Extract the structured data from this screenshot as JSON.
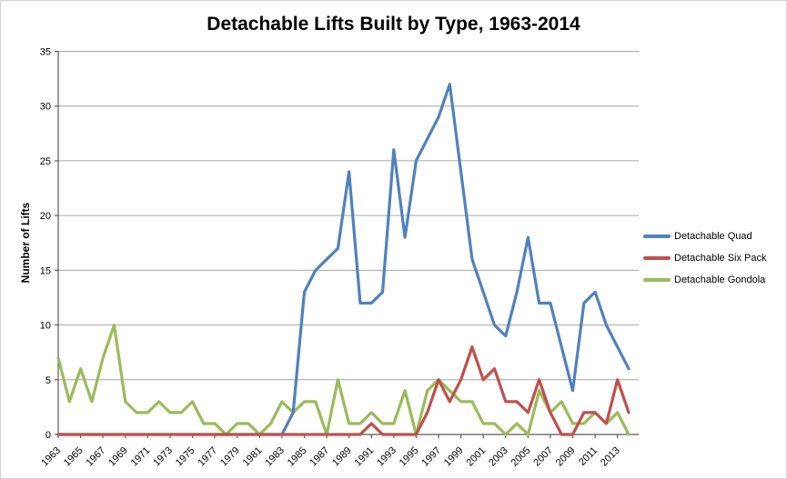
{
  "chart_data": {
    "type": "line",
    "title": "Detachable Lifts Built by Type, 1963-2014",
    "xlabel": "",
    "ylabel": "Number of Lifts",
    "ylim": [
      0,
      35
    ],
    "yticks": [
      0,
      5,
      10,
      15,
      20,
      25,
      30,
      35
    ],
    "x": [
      1963,
      1964,
      1965,
      1966,
      1967,
      1968,
      1969,
      1970,
      1971,
      1972,
      1973,
      1974,
      1975,
      1976,
      1977,
      1978,
      1979,
      1980,
      1981,
      1982,
      1983,
      1984,
      1985,
      1986,
      1987,
      1988,
      1989,
      1990,
      1991,
      1992,
      1993,
      1994,
      1995,
      1996,
      1997,
      1998,
      1999,
      2000,
      2001,
      2002,
      2003,
      2004,
      2005,
      2006,
      2007,
      2008,
      2009,
      2010,
      2011,
      2012,
      2013,
      2014
    ],
    "x_tick_labels": [
      "1963",
      "1965",
      "1967",
      "1969",
      "1971",
      "1973",
      "1975",
      "1977",
      "1979",
      "1981",
      "1983",
      "1985",
      "1987",
      "1989",
      "1991",
      "1993",
      "1995",
      "1997",
      "1999",
      "2001",
      "2003",
      "2005",
      "2007",
      "2009",
      "2011",
      "2013"
    ],
    "grid": "horizontal",
    "legend_position": "right",
    "series": [
      {
        "name": "Detachable Quad",
        "color": "#4F81BD",
        "values": [
          0,
          0,
          0,
          0,
          0,
          0,
          0,
          0,
          0,
          0,
          0,
          0,
          0,
          0,
          0,
          0,
          0,
          0,
          0,
          0,
          0,
          2,
          13,
          15,
          16,
          17,
          24,
          12,
          12,
          13,
          26,
          18,
          25,
          27,
          29,
          32,
          24,
          16,
          13,
          10,
          9,
          13,
          18,
          12,
          12,
          8,
          4,
          12,
          13,
          10,
          8,
          6
        ]
      },
      {
        "name": "Detachable Six Pack",
        "color": "#C0504D",
        "values": [
          0,
          0,
          0,
          0,
          0,
          0,
          0,
          0,
          0,
          0,
          0,
          0,
          0,
          0,
          0,
          0,
          0,
          0,
          0,
          0,
          0,
          0,
          0,
          0,
          0,
          0,
          0,
          0,
          1,
          0,
          0,
          0,
          0,
          2,
          5,
          3,
          5,
          8,
          5,
          6,
          3,
          3,
          2,
          5,
          2,
          0,
          0,
          2,
          2,
          1,
          5,
          2
        ]
      },
      {
        "name": "Detachable Gondola",
        "color": "#9BBB59",
        "values": [
          7,
          3,
          6,
          3,
          7,
          10,
          3,
          2,
          2,
          3,
          2,
          2,
          3,
          1,
          1,
          0,
          1,
          1,
          0,
          1,
          3,
          2,
          3,
          3,
          0,
          5,
          1,
          1,
          2,
          1,
          1,
          4,
          0,
          4,
          5,
          4,
          3,
          3,
          1,
          1,
          0,
          1,
          0,
          4,
          2,
          3,
          1,
          1,
          2,
          1,
          2,
          0
        ]
      }
    ],
    "style": {
      "gridline_color": "#A6A6A6",
      "axis_color": "#595959",
      "background": "#FFFFFF"
    }
  }
}
